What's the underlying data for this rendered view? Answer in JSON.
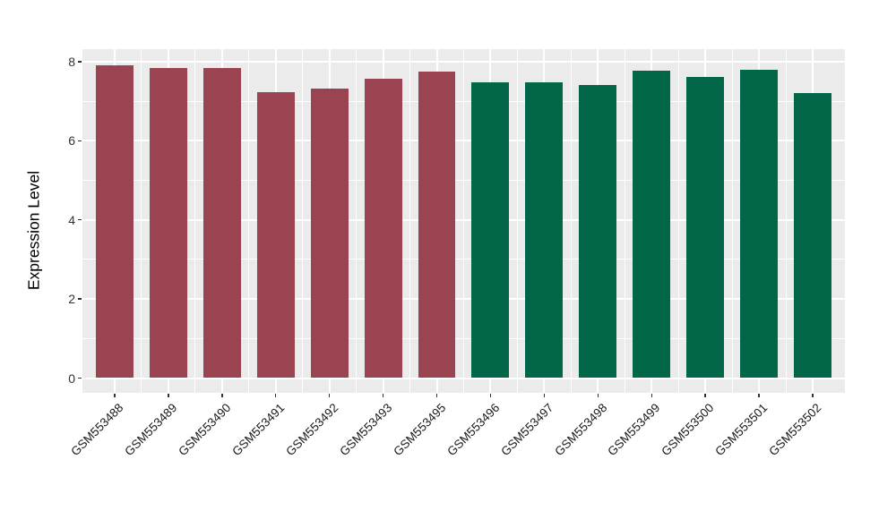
{
  "chart_data": {
    "type": "bar",
    "title": "",
    "xlabel": "",
    "ylabel": "Expression Level",
    "ylim": [
      0,
      8.33
    ],
    "yticks": [
      0,
      2,
      4,
      6,
      8
    ],
    "yticks_minor": [
      1,
      3,
      5,
      7
    ],
    "grid": "on",
    "legend": "none",
    "categories": [
      "GSM553488",
      "GSM553489",
      "GSM553490",
      "GSM553491",
      "GSM553492",
      "GSM553493",
      "GSM553495",
      "GSM553496",
      "GSM553497",
      "GSM553498",
      "GSM553499",
      "GSM553500",
      "GSM553501",
      "GSM553502"
    ],
    "values": [
      7.9,
      7.84,
      7.83,
      7.22,
      7.31,
      7.57,
      7.75,
      7.47,
      7.47,
      7.4,
      7.78,
      7.62,
      7.8,
      7.2
    ],
    "bar_colors": [
      "#9A4451",
      "#9A4451",
      "#9A4451",
      "#9A4451",
      "#9A4451",
      "#9A4451",
      "#9A4451",
      "#026649",
      "#026649",
      "#026649",
      "#026649",
      "#026649",
      "#026649",
      "#026649"
    ],
    "group_colors": {
      "group1": "#9A4451",
      "group2": "#026649"
    },
    "panel_background": "#EBEBEB",
    "grid_color": "#FFFFFF",
    "axis_text_color": "#323232",
    "tick_color": "#333333"
  }
}
